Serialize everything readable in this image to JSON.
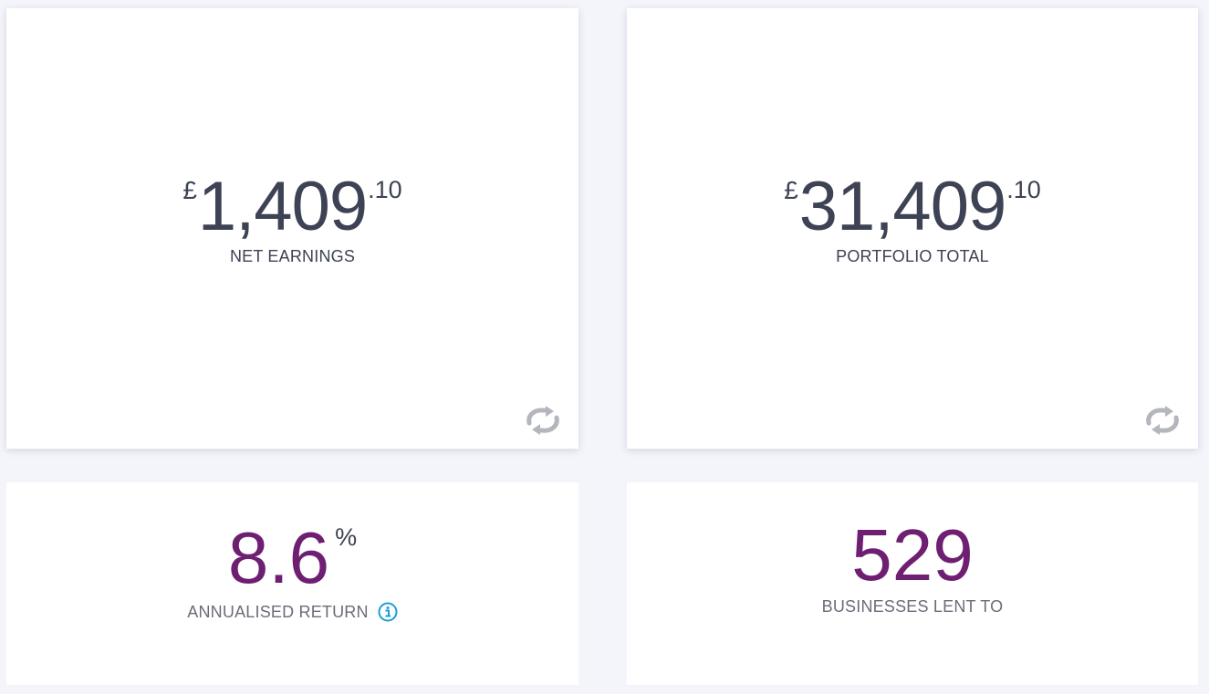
{
  "net_earnings": {
    "currency": "£",
    "whole": "1,409",
    "cents": ".10",
    "label": "NET EARNINGS",
    "icon": "refresh-icon"
  },
  "portfolio_total": {
    "currency": "£",
    "whole": "31,409",
    "cents": ".10",
    "label": "PORTFOLIO TOTAL",
    "icon": "refresh-icon"
  },
  "annualised_return": {
    "value": "8.6",
    "unit": "%",
    "label": "ANNUALISED RETURN",
    "icon": "info-icon"
  },
  "businesses_lent_to": {
    "value": "529",
    "label": "BUSINESSES LENT TO"
  },
  "colors": {
    "accent_purple": "#6e1f72",
    "text_dark": "#3d4254",
    "info_blue": "#1a9fd6",
    "icon_grey": "#b4b6bd",
    "background": "#f4f5fb"
  }
}
